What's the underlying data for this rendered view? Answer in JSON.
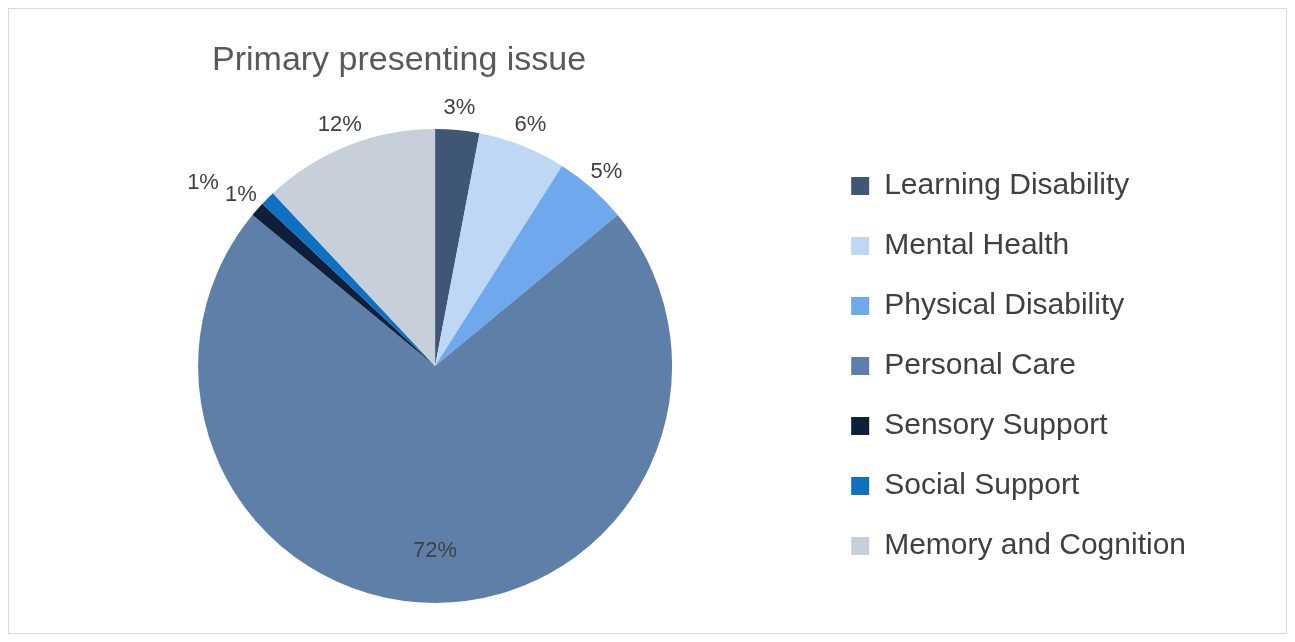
{
  "chart_data": {
    "type": "pie",
    "title": "Primary presenting issue",
    "categories": [
      "Learning Disability",
      "Mental Health",
      "Physical Disability",
      "Personal Care",
      "Sensory Support",
      "Social Support",
      "Memory and Cognition"
    ],
    "values": [
      3,
      6,
      5,
      72,
      1,
      1,
      12
    ],
    "colors": [
      "#3f5675",
      "#bdd7f5",
      "#6fa8ec",
      "#5e7fa8",
      "#0d1f3a",
      "#0f6fc1",
      "#c7cfdb"
    ],
    "value_labels": [
      "3%",
      "6%",
      "5%",
      "72%",
      "1%",
      "1%",
      "12%"
    ],
    "legend": "right"
  }
}
